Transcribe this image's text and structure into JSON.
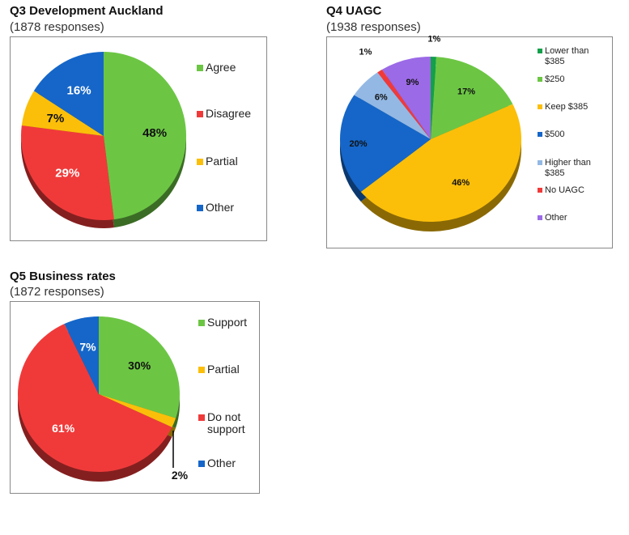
{
  "chart_data": [
    {
      "type": "pie",
      "title": "Q3 Development Auckland",
      "subtitle": "(1878 responses)",
      "categories": [
        "Agree",
        "Disagree",
        "Partial",
        "Other"
      ],
      "values": [
        48,
        29,
        7,
        16
      ],
      "labels": [
        "48%",
        "29%",
        "7%",
        "16%"
      ],
      "colors": [
        "#6cc644",
        "#f03a3a",
        "#fbbf0a",
        "#1566c8"
      ],
      "label_colors": [
        "#111",
        "#fff",
        "#111",
        "#fff"
      ]
    },
    {
      "type": "pie",
      "title": "Q4 UAGC",
      "subtitle": "(1938 responses)",
      "categories": [
        "Lower than $385",
        "$250",
        "Keep $385",
        "$500",
        "Higher than $385",
        "No UAGC",
        "Other"
      ],
      "values": [
        1,
        17,
        46,
        20,
        6,
        1,
        9
      ],
      "labels": [
        "1%",
        "17%",
        "46%",
        "20%",
        "6%",
        "1%",
        "9%"
      ],
      "colors": [
        "#12a04a",
        "#6cc644",
        "#fbbf0a",
        "#1566c8",
        "#93b8e4",
        "#f03a3a",
        "#9b6ae6"
      ],
      "label_colors": [
        "#111",
        "#111",
        "#111",
        "#111",
        "#111",
        "#111",
        "#111"
      ]
    },
    {
      "type": "pie",
      "title": "Q5 Business rates",
      "subtitle": "(1872 responses)",
      "categories": [
        "Support",
        "Partial",
        "Do not support",
        "Other"
      ],
      "values": [
        30,
        2,
        61,
        7
      ],
      "labels": [
        "30%",
        "2%",
        "61%",
        "7%"
      ],
      "colors": [
        "#6cc644",
        "#fbbf0a",
        "#f03a3a",
        "#1566c8"
      ],
      "label_colors": [
        "#111",
        "#111",
        "#fff",
        "#fff"
      ]
    }
  ]
}
